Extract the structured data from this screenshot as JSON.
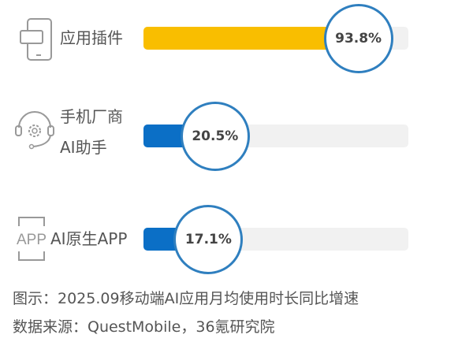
{
  "chart_data": {
    "type": "bar",
    "orientation": "horizontal",
    "categories": [
      "应用插件",
      "手机厂商AI助手",
      "AI原生APP"
    ],
    "category_lines": [
      [
        "应用插件"
      ],
      [
        "手机厂商",
        "AI助手"
      ],
      [
        "AI原生APP"
      ]
    ],
    "values": [
      93.8,
      20.5,
      17.1
    ],
    "data_labels": [
      "93.8%",
      "20.5%",
      "17.1%"
    ],
    "colors": [
      "#F9BE00",
      "#0B6FC6",
      "#0B6FC6"
    ],
    "icons": [
      "phone-plugin-icon",
      "headset-gear-icon",
      "app-frame-icon"
    ],
    "track_color": "#F1F1F1",
    "circle_border_color": "#2F7FBF",
    "unit": "%"
  },
  "caption": "图示：2025.09移动端AI应用月均使用时长同比增速",
  "source": "数据来源：QuestMobile，36氪研究院",
  "app_icon_text": "APP"
}
